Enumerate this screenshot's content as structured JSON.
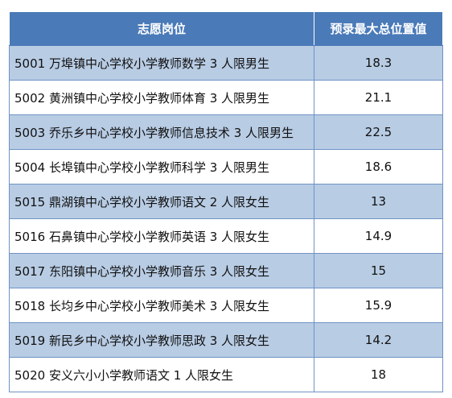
{
  "table": {
    "headers": [
      "志愿岗位",
      "预录最大总位置值"
    ],
    "rows": [
      {
        "position": "5001 万埠镇中心学校小学教师数学 3 人限男生",
        "value": "18.3"
      },
      {
        "position": "5002 黄洲镇中心学校小学教师体育 3 人限男生",
        "value": "21.1"
      },
      {
        "position": "5003 乔乐乡中心学校小学教师信息技术 3 人限男生",
        "value": "22.5"
      },
      {
        "position": "5004 长埠镇中心学校小学教师科学 3 人限男生",
        "value": "18.6"
      },
      {
        "position": "5015 鼎湖镇中心学校小学教师语文 2 人限女生",
        "value": "13"
      },
      {
        "position": "5016 石鼻镇中心学校小学教师英语 3 人限女生",
        "value": "14.9"
      },
      {
        "position": "5017 东阳镇中心学校小学教师音乐 3 人限女生",
        "value": "15"
      },
      {
        "position": "5018 长均乡中心学校小学教师美术 3 人限女生",
        "value": "15.9"
      },
      {
        "position": "5019 新民乡中心学校小学教师思政 3 人限女生",
        "value": "14.2"
      },
      {
        "position": "5020 安义六小小学教师语文 1 人限女生",
        "value": "18"
      }
    ]
  },
  "colors": {
    "header_bg": "#4a7ab8",
    "shaded_row_bg": "#b8cce4",
    "border": "#6f93c4"
  }
}
